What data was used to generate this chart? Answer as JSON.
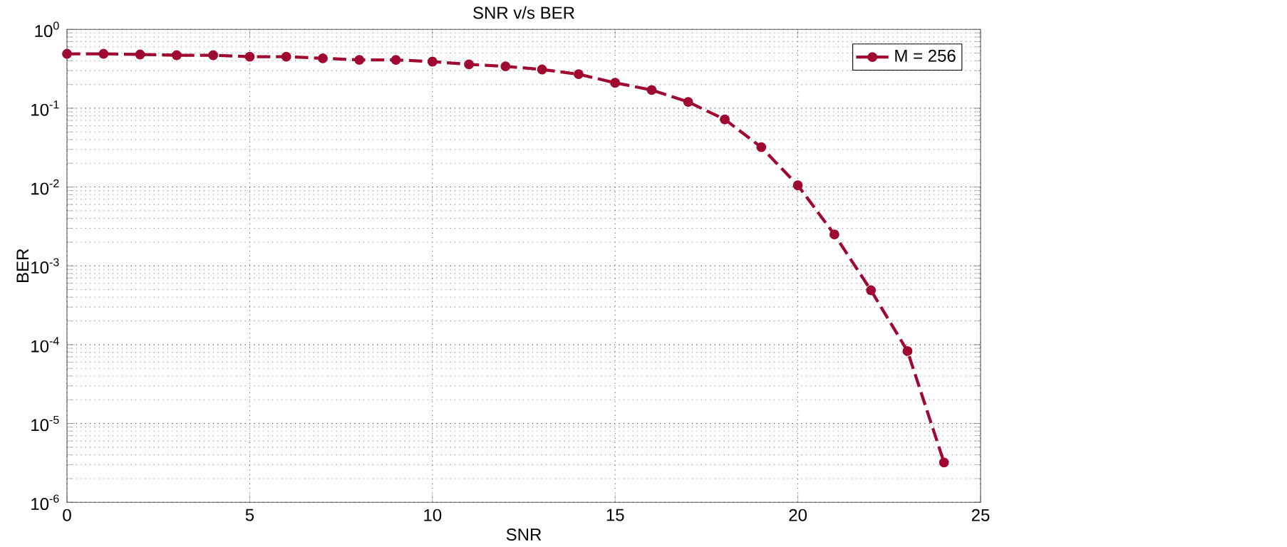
{
  "chart_data": {
    "type": "line",
    "title": "SNR v/s BER",
    "xlabel": "SNR",
    "ylabel": "BER",
    "x": [
      0,
      1,
      2,
      3,
      4,
      5,
      6,
      7,
      8,
      9,
      10,
      11,
      12,
      13,
      14,
      15,
      16,
      17,
      18,
      19,
      20,
      21,
      22,
      23,
      24
    ],
    "series": [
      {
        "name": "M = 256",
        "color": "#a00a30",
        "values": [
          0.49,
          0.49,
          0.48,
          0.47,
          0.47,
          0.45,
          0.45,
          0.43,
          0.41,
          0.41,
          0.39,
          0.36,
          0.34,
          0.31,
          0.27,
          0.21,
          0.17,
          0.12,
          0.072,
          0.032,
          0.0105,
          0.0025,
          0.00049,
          8.3e-05,
          3.2e-06
        ]
      }
    ],
    "xlim": [
      0,
      25
    ],
    "xticks": [
      0,
      5,
      10,
      15,
      20,
      25
    ],
    "ylim": [
      1e-06,
      1
    ],
    "yticks": [
      {
        "value": 1e-06,
        "label": "10$^{-6}$"
      },
      {
        "value": 1e-05,
        "label": "10$^{-5}$"
      },
      {
        "value": 0.0001,
        "label": "10$^{-4}$"
      },
      {
        "value": 0.001,
        "label": "10$^{-3}$"
      },
      {
        "value": 0.01,
        "label": "10$^{-2}$"
      },
      {
        "value": 0.1,
        "label": "10$^{-1}$"
      },
      {
        "value": 1,
        "label": "10$^{0}$"
      }
    ],
    "log": "y",
    "grid": true,
    "legend": "top right",
    "marker": "circle",
    "line_style": "dashed"
  }
}
